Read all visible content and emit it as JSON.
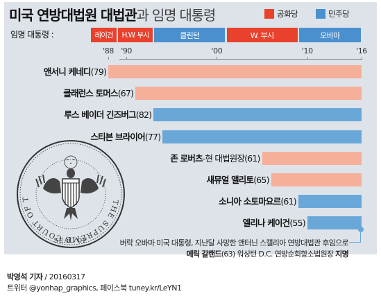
{
  "title": {
    "part1": "미국 연방대법원 대법관",
    "part2": "과 임명 대통령"
  },
  "legend": [
    {
      "label": "공화당",
      "color": "#e8412c"
    },
    {
      "label": "민주당",
      "color": "#4a90cf"
    }
  ],
  "colors": {
    "republican_bar": "#f6b09a",
    "democrat_bar": "#6aa7d9",
    "republican_era": "#e8412c",
    "democrat_era": "#4a90cf",
    "panel_bg": "#dde3e9"
  },
  "era_label": "임명 대통령 :",
  "presidents": [
    {
      "name": "레이건",
      "party": "republican",
      "start": 1986,
      "end": 1989
    },
    {
      "name": "H.W. 부시",
      "party": "republican",
      "start": 1989,
      "end": 1993
    },
    {
      "name": "클린턴",
      "party": "democrat",
      "start": 1993,
      "end": 2001
    },
    {
      "name": "W. 부시",
      "party": "republican",
      "start": 2001,
      "end": 2009
    },
    {
      "name": "오바마",
      "party": "democrat",
      "start": 2009,
      "end": 2016
    }
  ],
  "chart_data": {
    "type": "bar",
    "orientation": "horizontal",
    "x_ticks": [
      {
        "year": 1988,
        "label": "'88"
      },
      {
        "year": 1990,
        "label": "'90"
      },
      {
        "year": 2000,
        "label": "'00"
      },
      {
        "year": 2010,
        "label": "'10"
      },
      {
        "year": 2016,
        "label": "'16"
      }
    ],
    "xlim": [
      1986,
      2016
    ],
    "series": [
      {
        "name": "앤서니 케네디",
        "age": 79,
        "start": 1988,
        "end": 2016,
        "party": "republican",
        "suffix": ""
      },
      {
        "name": "클래런스 토머스",
        "age": 67,
        "start": 1991,
        "end": 2016,
        "party": "republican",
        "suffix": ""
      },
      {
        "name": "루스 베이더 긴즈버그",
        "age": 82,
        "start": 1993,
        "end": 2016,
        "party": "democrat",
        "suffix": ""
      },
      {
        "name": "스티븐 브라이어",
        "age": 77,
        "start": 1994,
        "end": 2016,
        "party": "democrat",
        "suffix": ""
      },
      {
        "name": "존 로버츠",
        "age": 61,
        "start": 2005,
        "end": 2016,
        "party": "republican",
        "suffix": "-현 대법원장"
      },
      {
        "name": "새뮤얼 앨리토",
        "age": 65,
        "start": 2006,
        "end": 2016,
        "party": "republican",
        "suffix": ""
      },
      {
        "name": "소니아 소토마요르",
        "age": 61,
        "start": 2009,
        "end": 2016,
        "party": "democrat",
        "suffix": ""
      },
      {
        "name": "엘리나 케이건",
        "age": 55,
        "start": 2010,
        "end": 2016,
        "party": "democrat",
        "suffix": ""
      }
    ]
  },
  "note": {
    "line1": "버락 오바마 미국 대통령, 지난달 사망한 앤터닌 스캘리아 연방대법관 후임으로",
    "line2_bold": "메릭 갈랜드",
    "line2_mid": "(63) 워싱턴 D.C. 연방순회항소법원장 ",
    "line2_end": "지명"
  },
  "seal_text": {
    "top": "THE SUPREME COURT OF THE UNITED STATES",
    "bottom": "SEAL OF"
  },
  "credit": {
    "author": "박영석 기자",
    "date": " / 20160317",
    "social": "트위터 @yonhap_graphics, 페이스북 tuney.kr/LeYN1"
  }
}
